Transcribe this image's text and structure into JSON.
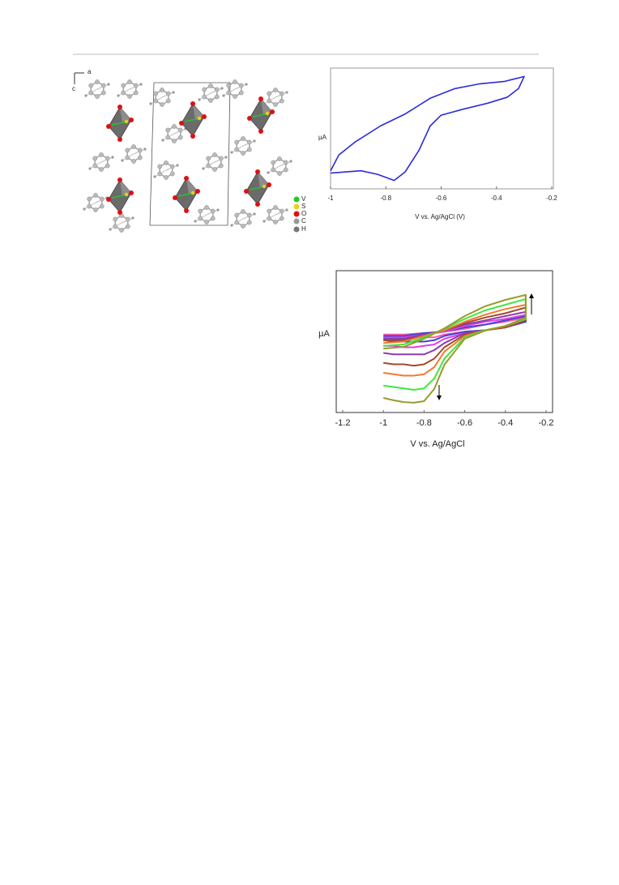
{
  "figure": {
    "axis_labels": [
      "a",
      "c"
    ],
    "legend": [
      "V",
      "S",
      "O",
      "C",
      "H"
    ]
  },
  "chart_data": [
    {
      "type": "line",
      "x_label": "V vs. Ag/AgCl (V)",
      "y_label": "µA",
      "xlim": [
        -1,
        -0.2
      ],
      "xticks": [
        -1,
        -0.8,
        -0.6,
        -0.4,
        -0.2
      ],
      "ylim": [
        0,
        100
      ],
      "color": "#2b2bdc",
      "x": [
        -1,
        -0.89,
        -0.83,
        -0.77,
        -0.73,
        -0.68,
        -0.64,
        -0.6,
        -0.52,
        -0.43,
        -0.36,
        -0.32,
        -0.3,
        -0.37,
        -0.46,
        -0.55,
        -0.64,
        -0.73,
        -0.82,
        -0.91,
        -0.97,
        -1
      ],
      "values": [
        13,
        15,
        12,
        7,
        14,
        32,
        52,
        61,
        66,
        71,
        76,
        83,
        93,
        89,
        87,
        83,
        75,
        62,
        52,
        39,
        28,
        15
      ]
    },
    {
      "type": "line",
      "x_label": "V vs. Ag/AgCl",
      "y_label": "µA",
      "xlim": [
        -1.2,
        -0.2
      ],
      "xticks": [
        -1.2,
        -1,
        -0.8,
        -0.6,
        -0.4,
        -0.2
      ],
      "ylim": [
        0,
        100
      ],
      "x": [
        -1,
        -0.95,
        -0.9,
        -0.85,
        -0.8,
        -0.75,
        -0.7,
        -0.6,
        -0.5,
        -0.4,
        -0.3,
        -0.3,
        -0.4,
        -0.5,
        -0.6,
        -0.7,
        -0.8,
        -0.9,
        -1
      ],
      "series": [
        {
          "color": "#ff5aa0",
          "values": [
            53,
            53,
            53,
            53,
            53,
            53,
            55,
            57,
            58,
            60,
            64,
            67,
            64,
            62,
            59,
            57,
            56,
            55,
            55
          ]
        },
        {
          "color": "#3a46d8",
          "values": [
            51,
            50,
            50,
            50,
            50,
            51,
            54,
            57,
            58,
            60,
            64,
            68,
            65,
            62,
            60,
            57,
            56,
            54,
            54
          ]
        },
        {
          "color": "#e23ee0",
          "values": [
            47,
            47,
            46,
            46,
            47,
            48,
            52,
            56,
            58,
            60,
            65,
            69,
            66,
            64,
            61,
            57,
            55,
            53,
            53
          ]
        },
        {
          "color": "#8a3cb0",
          "values": [
            42,
            41,
            41,
            41,
            41,
            44,
            49,
            56,
            58,
            60,
            65,
            71,
            68,
            65,
            62,
            58,
            55,
            52,
            52
          ]
        },
        {
          "color": "#a34a2a",
          "values": [
            35,
            34,
            34,
            33,
            34,
            38,
            46,
            55,
            58,
            60,
            65,
            74,
            70,
            67,
            63,
            58,
            54,
            51,
            51
          ]
        },
        {
          "color": "#f27a2e",
          "values": [
            28,
            27,
            26,
            26,
            27,
            32,
            43,
            54,
            58,
            61,
            66,
            76,
            73,
            69,
            64,
            58,
            54,
            50,
            49
          ]
        },
        {
          "color": "#3ee83e",
          "values": [
            19,
            18,
            17,
            16,
            17,
            24,
            38,
            53,
            58,
            61,
            66,
            80,
            76,
            72,
            66,
            59,
            53,
            48,
            47
          ]
        },
        {
          "color": "#9a9a2c",
          "values": [
            10.3,
            8.6,
            7.4,
            6.9,
            8,
            16.6,
            33.7,
            52,
            57.7,
            61.1,
            66.9,
            82.9,
            79.4,
            74.9,
            68,
            59.4,
            52,
            46.3,
            45.1
          ]
        }
      ]
    }
  ]
}
